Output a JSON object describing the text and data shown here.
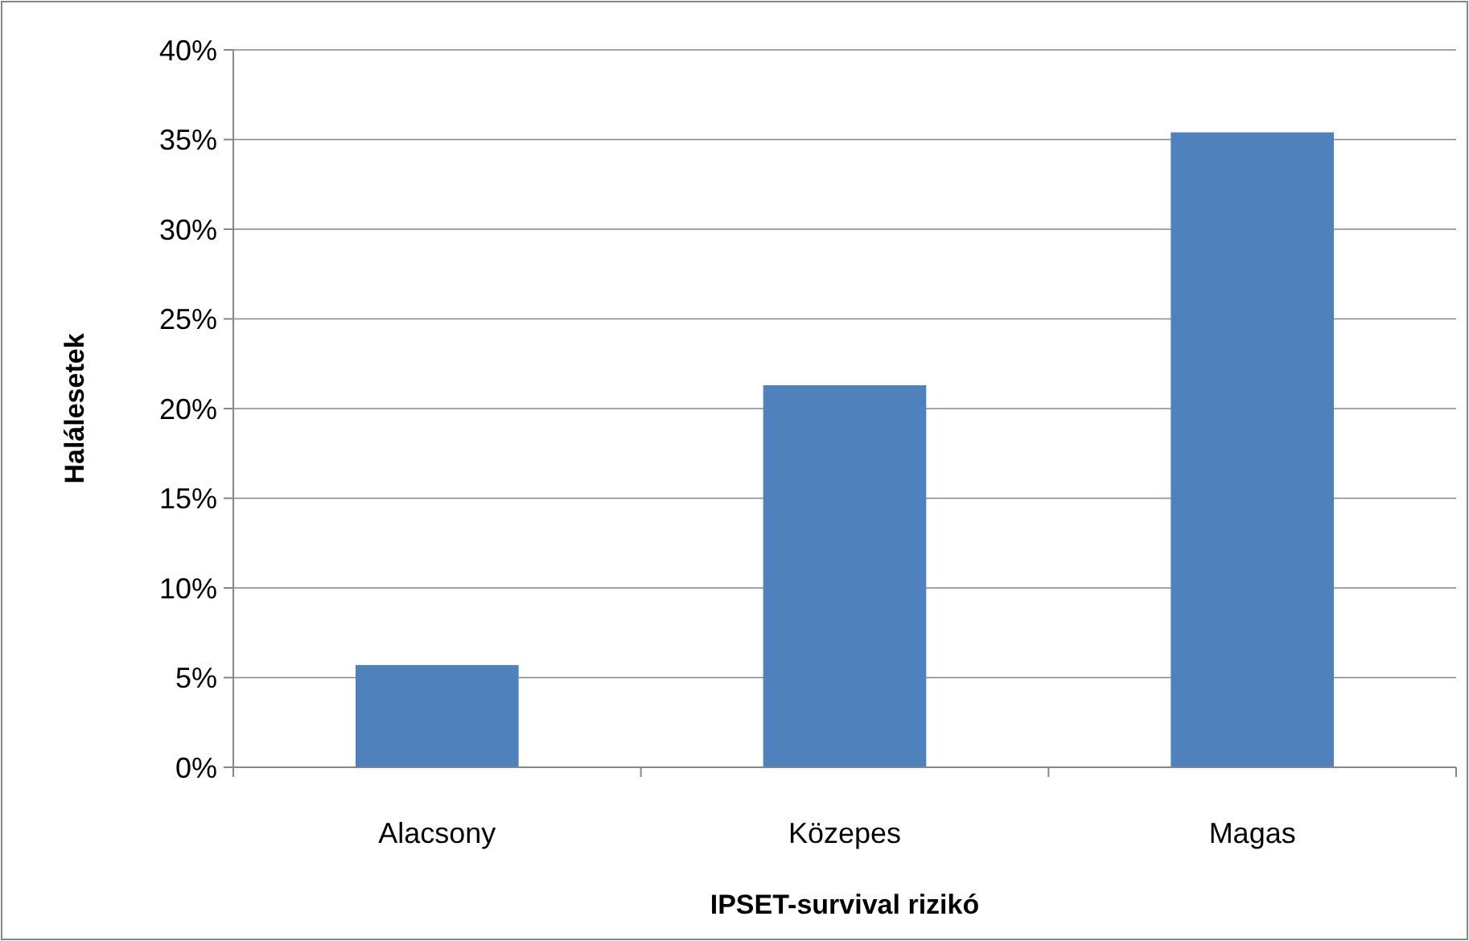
{
  "chart_data": {
    "type": "bar",
    "xlabel": "IPSET-survival rizikó",
    "ylabel": "Halálesetek",
    "categories": [
      "Alacsony",
      "Közepes",
      "Magas"
    ],
    "values": [
      5.7,
      21.3,
      35.4
    ],
    "color": "#4f81bd",
    "ylim": [
      0,
      40
    ],
    "yticks": [
      {
        "value": 0,
        "label": "0%"
      },
      {
        "value": 5,
        "label": "5%"
      },
      {
        "value": 10,
        "label": "10%"
      },
      {
        "value": 15,
        "label": "15%"
      },
      {
        "value": 20,
        "label": "20%"
      },
      {
        "value": 25,
        "label": "25%"
      },
      {
        "value": 30,
        "label": "30%"
      },
      {
        "value": 35,
        "label": "35%"
      },
      {
        "value": 40,
        "label": "40%"
      }
    ],
    "grid": "y"
  }
}
